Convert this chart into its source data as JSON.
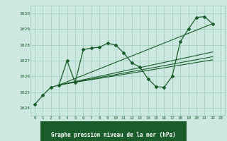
{
  "title": "Graphe pression niveau de la mer (hPa)",
  "background_color": "#cce8e0",
  "grid_color": "#99ccbb",
  "line_color": "#1a5c2a",
  "marker_color": "#1a5c2a",
  "xlim": [
    -0.5,
    23.5
  ],
  "ylim": [
    1023.5,
    1030.5
  ],
  "yticks": [
    1024,
    1025,
    1026,
    1027,
    1028,
    1029,
    1030
  ],
  "xticks": [
    0,
    1,
    2,
    3,
    4,
    5,
    6,
    7,
    8,
    9,
    10,
    11,
    12,
    13,
    14,
    15,
    16,
    17,
    18,
    19,
    20,
    21,
    22,
    23
  ],
  "series_main": [
    [
      0,
      1024.2
    ],
    [
      1,
      1024.8
    ],
    [
      2,
      1025.3
    ],
    [
      3,
      1025.45
    ],
    [
      4,
      1027.0
    ],
    [
      5,
      1025.6
    ],
    [
      6,
      1027.7
    ],
    [
      7,
      1027.8
    ],
    [
      8,
      1027.85
    ],
    [
      9,
      1028.1
    ],
    [
      10,
      1028.0
    ],
    [
      11,
      1027.5
    ],
    [
      12,
      1026.85
    ],
    [
      13,
      1026.6
    ],
    [
      14,
      1025.85
    ],
    [
      15,
      1025.35
    ],
    [
      16,
      1025.3
    ],
    [
      17,
      1026.0
    ],
    [
      18,
      1028.2
    ],
    [
      19,
      1029.0
    ],
    [
      20,
      1029.75
    ],
    [
      21,
      1029.8
    ],
    [
      22,
      1029.35
    ]
  ],
  "series_lines": [
    [
      [
        3,
        1025.45
      ],
      [
        22,
        1027.0
      ]
    ],
    [
      [
        3,
        1025.45
      ],
      [
        22,
        1027.2
      ]
    ],
    [
      [
        3,
        1025.45
      ],
      [
        22,
        1027.5
      ]
    ],
    [
      [
        3,
        1025.45
      ],
      [
        22,
        1029.35
      ]
    ]
  ]
}
